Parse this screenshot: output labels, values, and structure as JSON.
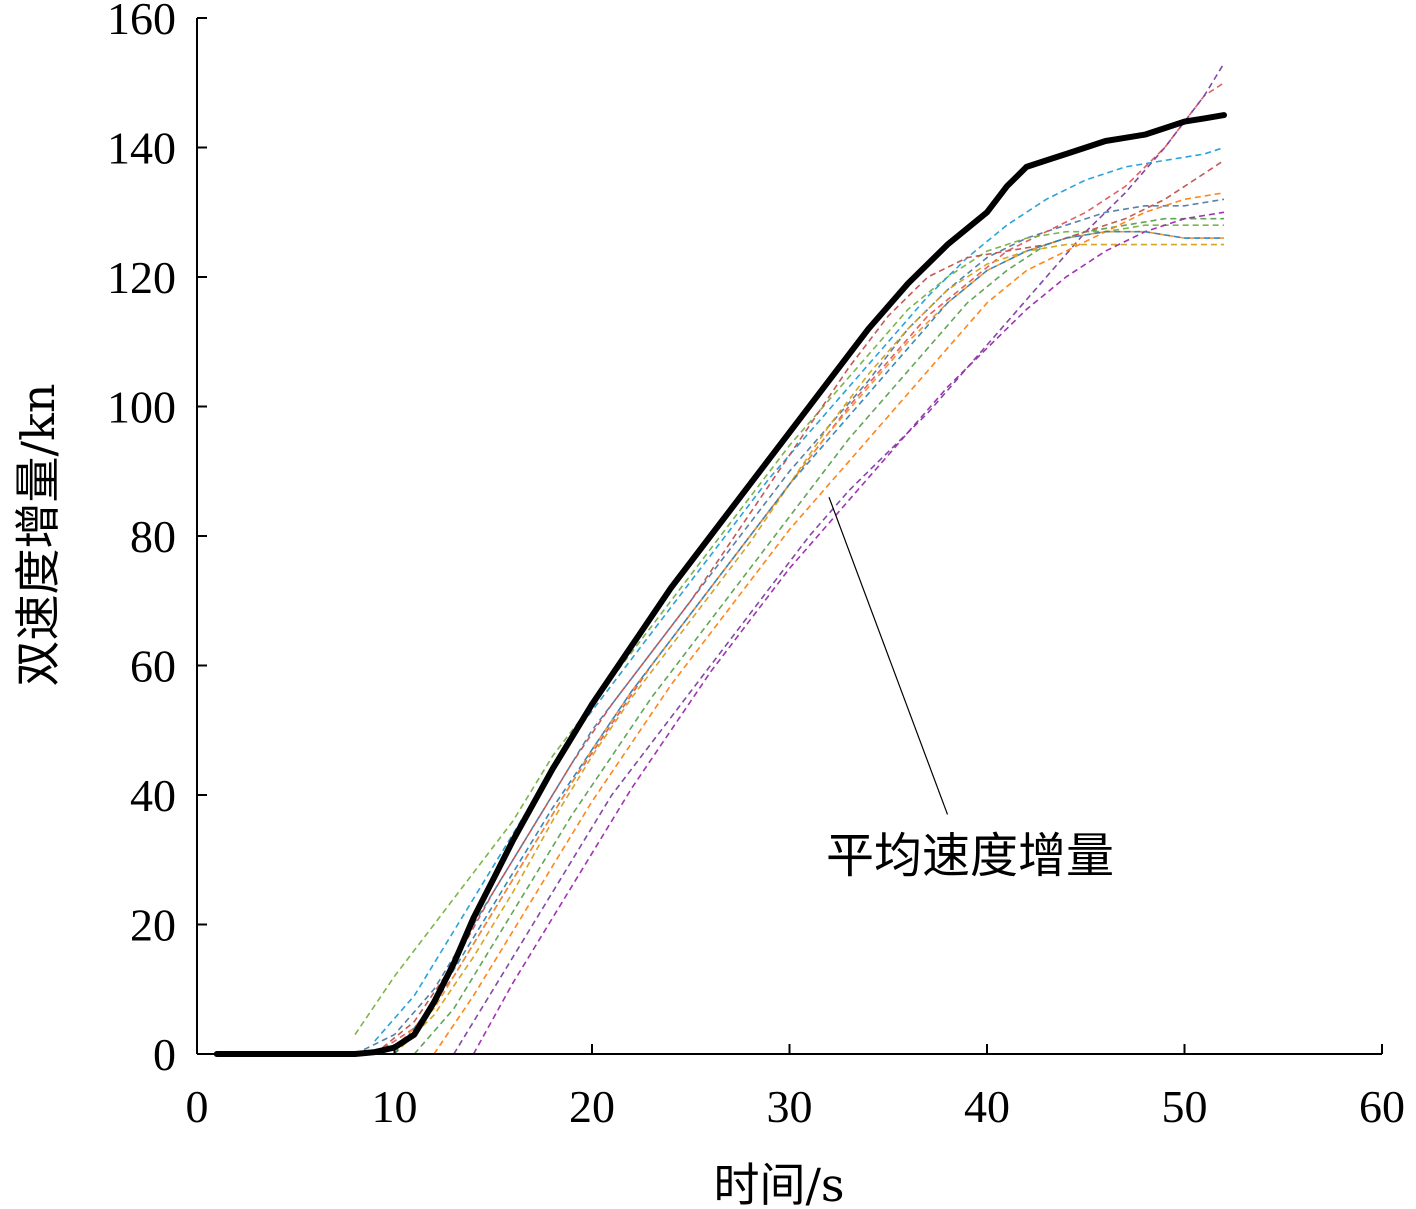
{
  "chart_data": {
    "type": "line",
    "title": "",
    "xlabel": "时间/s",
    "ylabel": "双速度增量/kn",
    "xlim": [
      0,
      60
    ],
    "ylim": [
      0,
      160
    ],
    "xticks": [
      0,
      10,
      20,
      30,
      40,
      50,
      60
    ],
    "yticks": [
      0,
      20,
      40,
      60,
      80,
      100,
      120,
      140,
      160
    ],
    "grid": false,
    "annotation": {
      "text": "平均速度增量",
      "points_to": {
        "x": 32,
        "y": 86
      },
      "label_anchor": {
        "x": 38,
        "y": 37
      }
    },
    "mean_series": {
      "color": "#000000",
      "x": [
        1,
        8,
        9,
        10,
        11,
        12,
        13,
        14,
        15,
        16,
        18,
        20,
        22,
        24,
        26,
        28,
        30,
        32,
        34,
        36,
        38,
        40,
        41,
        42,
        43,
        44,
        45,
        46,
        47,
        48,
        49,
        50,
        51,
        52
      ],
      "y": [
        0,
        0,
        0.3,
        1,
        3,
        8,
        14,
        21,
        27,
        33,
        44,
        54,
        63,
        72,
        80,
        88,
        96,
        104,
        112,
        119,
        125,
        130,
        134,
        137,
        138,
        139,
        140,
        141,
        141.5,
        142,
        143,
        144,
        144.5,
        145
      ]
    },
    "series": [
      {
        "color": "#4e79a7",
        "x": [
          8,
          10,
          12,
          14,
          16,
          18,
          20,
          22,
          24,
          26,
          28,
          30,
          32,
          34,
          36,
          38,
          40,
          42,
          44,
          46,
          48,
          50,
          52
        ],
        "y": [
          0,
          3,
          10,
          20,
          30,
          40,
          50,
          58,
          66,
          74,
          82,
          90,
          97,
          104,
          112,
          118,
          123,
          126,
          128,
          130,
          131,
          131,
          132
        ]
      },
      {
        "color": "#e15759",
        "x": [
          9,
          11,
          13,
          15,
          17,
          19,
          21,
          23,
          25,
          27,
          29,
          31,
          33,
          35,
          37,
          39,
          41,
          43,
          45,
          47,
          49,
          51,
          52
        ],
        "y": [
          0,
          4,
          12,
          22,
          32,
          42,
          51,
          60,
          68,
          76,
          84,
          92,
          100,
          107,
          114,
          119,
          124,
          127,
          130,
          134,
          140,
          148,
          150
        ]
      },
      {
        "color": "#76b041",
        "x": [
          8,
          10,
          12,
          14,
          16,
          18,
          20,
          22,
          24,
          26,
          28,
          30,
          32,
          34,
          36,
          38,
          40,
          42,
          44,
          46,
          48,
          50,
          52
        ],
        "y": [
          3,
          12,
          20,
          28,
          36,
          46,
          54,
          62,
          70,
          78,
          86,
          94,
          101,
          108,
          115,
          120,
          124,
          126,
          127,
          127,
          128,
          128,
          128
        ]
      },
      {
        "color": "#7b3fa0",
        "x": [
          13,
          15,
          17,
          19,
          21,
          23,
          25,
          27,
          29,
          31,
          33,
          35,
          37,
          39,
          41,
          43,
          45,
          47,
          49,
          51,
          52
        ],
        "y": [
          0,
          10,
          20,
          30,
          40,
          48,
          56,
          64,
          72,
          80,
          87,
          93,
          99,
          106,
          113,
          120,
          127,
          133,
          140,
          148,
          153
        ]
      },
      {
        "color": "#f28e2b",
        "x": [
          10,
          12,
          14,
          16,
          18,
          20,
          22,
          24,
          26,
          28,
          30,
          32,
          34,
          36,
          38,
          40,
          42,
          44,
          46,
          48,
          50,
          52
        ],
        "y": [
          1,
          7,
          17,
          27,
          37,
          47,
          56,
          64,
          72,
          80,
          88,
          96,
          103,
          110,
          116,
          121,
          124,
          126,
          127,
          127,
          126,
          126
        ]
      },
      {
        "color": "#1f9ed8",
        "x": [
          9,
          11,
          13,
          15,
          17,
          19,
          21,
          23,
          25,
          27,
          29,
          31,
          33,
          35,
          37,
          39,
          41,
          43,
          45,
          47,
          49,
          51,
          52
        ],
        "y": [
          2,
          9,
          19,
          29,
          39,
          49,
          57,
          65,
          73,
          81,
          89,
          96,
          103,
          110,
          117,
          123,
          128,
          132,
          135,
          137,
          138,
          139,
          140
        ]
      },
      {
        "color": "#d4a017",
        "x": [
          10,
          12,
          14,
          16,
          18,
          20,
          22,
          24,
          26,
          28,
          30,
          32,
          34,
          36,
          38,
          40,
          42,
          44,
          46,
          48,
          50,
          52
        ],
        "y": [
          0,
          6,
          15,
          25,
          36,
          46,
          55,
          63,
          71,
          79,
          88,
          97,
          105,
          112,
          118,
          122,
          124,
          125,
          125,
          125,
          125,
          125
        ]
      },
      {
        "color": "#59a14f",
        "x": [
          11,
          13,
          15,
          17,
          19,
          21,
          23,
          25,
          27,
          29,
          31,
          33,
          35,
          37,
          39,
          41,
          43,
          45,
          47,
          49,
          51,
          52
        ],
        "y": [
          0,
          7,
          17,
          27,
          37,
          46,
          55,
          63,
          71,
          79,
          87,
          95,
          102,
          109,
          116,
          121,
          125,
          127,
          128,
          129,
          129,
          129
        ]
      },
      {
        "color": "#9c27b0",
        "x": [
          14,
          16,
          18,
          20,
          22,
          24,
          26,
          28,
          30,
          32,
          34,
          36,
          38,
          40,
          42,
          44,
          46,
          48,
          50,
          52
        ],
        "y": [
          0,
          11,
          21,
          31,
          41,
          50,
          59,
          67,
          75,
          82,
          89,
          96,
          103,
          109,
          115,
          120,
          124,
          127,
          129,
          130
        ]
      },
      {
        "color": "#c0504d",
        "x": [
          9,
          11,
          13,
          15,
          17,
          19,
          21,
          23,
          25,
          27,
          29,
          31,
          33,
          35,
          37,
          39,
          41,
          43,
          45,
          47,
          49,
          51,
          52
        ],
        "y": [
          0,
          5,
          14,
          25,
          35,
          45,
          54,
          62,
          70,
          79,
          88,
          97,
          106,
          114,
          120,
          123,
          124,
          125,
          127,
          129,
          132,
          136,
          138
        ]
      },
      {
        "color": "#ff7f0e",
        "x": [
          12,
          14,
          16,
          18,
          20,
          22,
          24,
          26,
          28,
          30,
          32,
          34,
          36,
          38,
          40,
          42,
          44,
          46,
          48,
          50,
          52
        ],
        "y": [
          0,
          9,
          19,
          29,
          39,
          48,
          57,
          65,
          73,
          81,
          88,
          95,
          102,
          109,
          116,
          121,
          124,
          127,
          130,
          132,
          133
        ]
      },
      {
        "color": "#2b83ba",
        "x": [
          10,
          12,
          14,
          16,
          18,
          20,
          22,
          24,
          26,
          28,
          30,
          32,
          34,
          36,
          38,
          40,
          42,
          44,
          46,
          48,
          50,
          52
        ],
        "y": [
          0,
          8,
          18,
          28,
          38,
          47,
          56,
          64,
          72,
          80,
          88,
          95,
          102,
          109,
          116,
          121,
          124,
          126,
          127,
          127,
          126,
          126
        ]
      }
    ]
  }
}
